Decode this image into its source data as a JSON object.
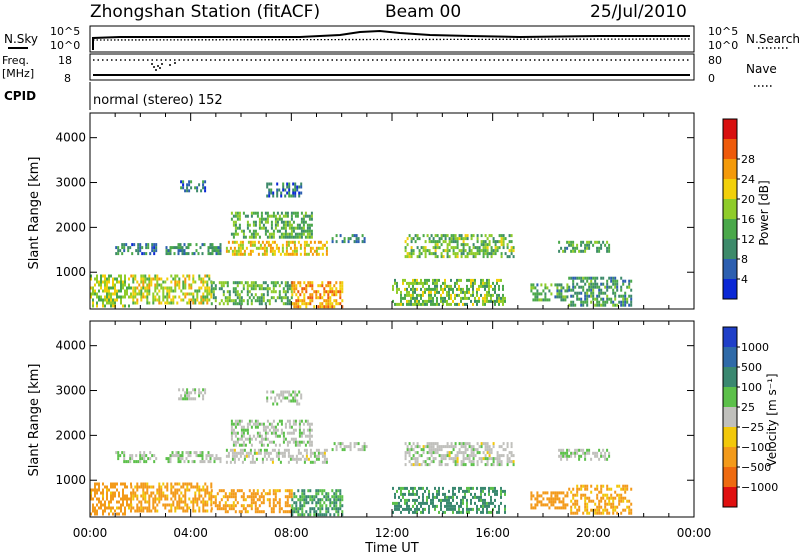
{
  "chart_data": {
    "type": "heatmap",
    "header": {
      "title": "Zhongshan Station (fitACF)",
      "beam": "Beam 00",
      "date": "25/Jul/2010"
    },
    "strip_nsky": {
      "label": "N.Sky",
      "right_label": "N.Search",
      "ticks_left": [
        "10^5",
        "10^0"
      ],
      "ticks_right": [
        "10^5",
        "10^0"
      ]
    },
    "strip_freq": {
      "label_line1": "Freq.",
      "label_line2": "[MHz]",
      "right_label": "Nave",
      "ticks_left": [
        "18",
        "8"
      ],
      "ticks_right": [
        "80",
        "0"
      ]
    },
    "strip_cpid": {
      "label": "CPID",
      "program": "normal (stereo) 152"
    },
    "x_axis": {
      "label": "Time UT",
      "range_hours": [
        0,
        24
      ],
      "ticks": [
        "00:00",
        "04:00",
        "08:00",
        "12:00",
        "16:00",
        "20:00",
        "00:00"
      ]
    },
    "panels": [
      {
        "name": "power",
        "ylabel": "Slant Range [km]",
        "ylim": [
          180,
          4550
        ],
        "yticks": [
          "1000",
          "2000",
          "3000",
          "4000"
        ],
        "colorbar_title": "Power [dB]",
        "colorbar_ticks": [
          "4",
          "8",
          "12",
          "16",
          "20",
          "24",
          "28"
        ],
        "colors": [
          "#0a28d6",
          "#2c5fb0",
          "#3d8a6a",
          "#4aa84a",
          "#8fcc2a",
          "#f2d00a",
          "#f49a0a",
          "#ee5a0a",
          "#d80f0f"
        ]
      },
      {
        "name": "velocity",
        "ylabel": "Slant Range [km]",
        "ylim": [
          180,
          4550
        ],
        "yticks": [
          "1000",
          "2000",
          "3000",
          "4000"
        ],
        "colorbar_title": "Velocity [m s⁻¹]",
        "colorbar_ticks": [
          "1000",
          "500",
          "100",
          "25",
          "−25",
          "−100",
          "−500",
          "−1000"
        ],
        "colors": [
          "#1f3fc8",
          "#2f6aa8",
          "#3a8870",
          "#5cc04a",
          "#c0c0bc",
          "#f2c80a",
          "#f39a1a",
          "#ee6a10",
          "#e01010"
        ]
      }
    ],
    "echo_regions": [
      {
        "t0": 1.0,
        "t1": 2.6,
        "r0": 1400,
        "r1": 1650,
        "power": 9,
        "velocity": 30
      },
      {
        "t0": 3.0,
        "t1": 5.2,
        "r0": 1400,
        "r1": 1650,
        "power": 10,
        "velocity": 20
      },
      {
        "t0": 5.4,
        "t1": 9.4,
        "r0": 1380,
        "r1": 1700,
        "power": 22,
        "velocity": 5
      },
      {
        "t0": 5.6,
        "t1": 8.8,
        "r0": 1800,
        "r1": 2350,
        "power": 14,
        "velocity": 15
      },
      {
        "t0": 9.6,
        "t1": 11.0,
        "r0": 1650,
        "r1": 1850,
        "power": 10,
        "velocity": 10
      },
      {
        "t0": 12.5,
        "t1": 16.8,
        "r0": 1350,
        "r1": 1850,
        "power": 15,
        "velocity": 5
      },
      {
        "t0": 18.6,
        "t1": 20.6,
        "r0": 1450,
        "r1": 1700,
        "power": 13,
        "velocity": 10
      },
      {
        "t0": 0.0,
        "t1": 1.6,
        "r0": 250,
        "r1": 950,
        "power": 18,
        "velocity": -200
      },
      {
        "t0": 1.6,
        "t1": 4.8,
        "r0": 300,
        "r1": 950,
        "power": 20,
        "velocity": -150
      },
      {
        "t0": 4.8,
        "t1": 8.0,
        "r0": 300,
        "r1": 800,
        "power": 14,
        "velocity": -200
      },
      {
        "t0": 8.0,
        "t1": 10.0,
        "r0": 250,
        "r1": 800,
        "power": 26,
        "velocity": 120
      },
      {
        "t0": 12.0,
        "t1": 16.5,
        "r0": 250,
        "r1": 850,
        "power": 16,
        "velocity": 150
      },
      {
        "t0": 17.5,
        "t1": 19.0,
        "r0": 350,
        "r1": 750,
        "power": 13,
        "velocity": -300
      },
      {
        "t0": 19.0,
        "t1": 21.5,
        "r0": 250,
        "r1": 900,
        "power": 11,
        "velocity": -120
      },
      {
        "t0": 3.5,
        "t1": 4.6,
        "r0": 2800,
        "r1": 3050,
        "power": 8,
        "velocity": 10
      },
      {
        "t0": 7.0,
        "t1": 8.4,
        "r0": 2700,
        "r1": 3000,
        "power": 8,
        "velocity": 10
      }
    ]
  }
}
